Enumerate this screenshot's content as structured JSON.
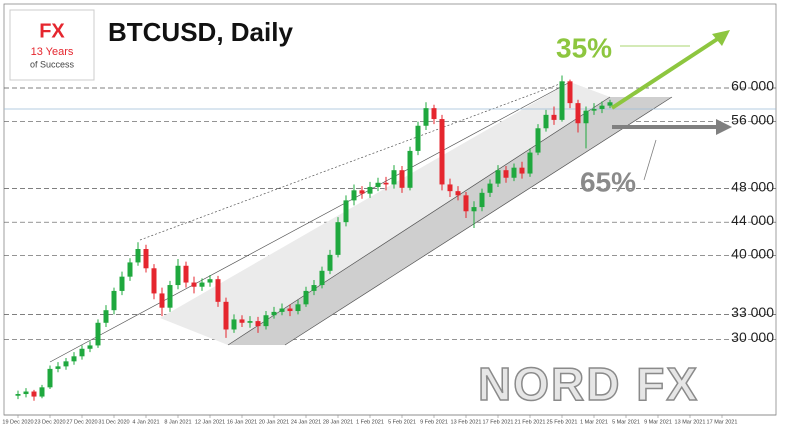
{
  "logo": {
    "brand": "FX",
    "line1": "13 Years",
    "line2": "of Success"
  },
  "watermark": "NORD FX",
  "chart_data": {
    "type": "candlestick",
    "title": "BTCUSD, Daily",
    "categories": [
      "19 Dec 2020",
      null,
      null,
      null,
      "23 Dec 2020",
      null,
      null,
      null,
      "27 Dec 2020",
      null,
      null,
      null,
      "31 Dec 2020",
      null,
      null,
      null,
      "4 Jan 2021",
      null,
      null,
      null,
      "8 Jan 2021",
      null,
      null,
      null,
      "12 Jan 2021",
      null,
      null,
      null,
      "16 Jan 2021",
      null,
      null,
      null,
      "20 Jan 2021",
      null,
      null,
      null,
      "24 Jan 2021",
      null,
      null,
      null,
      "28 Jan 2021",
      null,
      null,
      null,
      "1 Feb 2021",
      null,
      null,
      null,
      "5 Feb 2021",
      null,
      null,
      null,
      "9 Feb 2021",
      null,
      null,
      null,
      "13 Feb 2021",
      null,
      null,
      null,
      "17 Feb 2021",
      null,
      null,
      null,
      "21 Feb 2021",
      null,
      null,
      null,
      "25 Feb 2021",
      null,
      null,
      null,
      "1 Mar 2021",
      null,
      null,
      null,
      "5 Mar 2021",
      null,
      null,
      null,
      "9 Mar 2021",
      null,
      null,
      null,
      "13 Mar 2021",
      null,
      null,
      null,
      "17 Mar 2021"
    ],
    "open": [
      23300,
      23500,
      23800,
      23200,
      24300,
      26500,
      26800,
      27400,
      28000,
      28900,
      29300,
      32000,
      33500,
      35800,
      37500,
      39200,
      40800,
      38500,
      35500,
      33800,
      36500,
      38800,
      36800,
      36300,
      36800,
      37200,
      34500,
      31200,
      32400,
      32000,
      32200,
      31600,
      32900,
      33300,
      33700,
      33400,
      34200,
      35800,
      36500,
      38200,
      40100,
      44000,
      46600,
      47800,
      47400,
      48200,
      48700,
      48500,
      50200,
      48100,
      52500,
      55500,
      57600,
      56300,
      48500,
      47700,
      47200,
      45300,
      45800,
      47500,
      48600,
      50200,
      49300,
      50500,
      49800,
      52300,
      55200,
      56800,
      56200,
      60800,
      58200,
      55800,
      57300,
      57500,
      57900,
      null,
      null,
      null,
      null,
      null,
      null,
      null,
      null,
      null,
      null,
      null,
      null,
      null,
      null
    ],
    "high": [
      23900,
      24200,
      24000,
      24600,
      26900,
      27300,
      27800,
      28500,
      29300,
      29800,
      32400,
      34100,
      36200,
      38100,
      39700,
      41600,
      41300,
      39000,
      36200,
      37000,
      39600,
      39300,
      37500,
      37300,
      37700,
      37600,
      35000,
      33000,
      32900,
      32800,
      32700,
      33400,
      33900,
      34300,
      34200,
      34700,
      36300,
      37100,
      38700,
      40700,
      44600,
      47200,
      48500,
      48300,
      48800,
      49300,
      49400,
      50800,
      50700,
      53000,
      56000,
      58300,
      58000,
      56800,
      49200,
      48300,
      47600,
      46500,
      48000,
      49100,
      50800,
      50700,
      51000,
      51200,
      52800,
      55700,
      57400,
      57800,
      61500,
      61000,
      58600,
      57800,
      58200,
      58400,
      58600,
      null,
      null,
      null,
      null,
      null,
      null,
      null,
      null,
      null,
      null,
      null,
      null,
      null,
      null
    ],
    "low": [
      22900,
      23100,
      22700,
      23000,
      24100,
      26100,
      26400,
      27000,
      27600,
      28500,
      29000,
      31500,
      33000,
      35300,
      37000,
      38800,
      38000,
      34800,
      32800,
      33300,
      36000,
      36200,
      35500,
      35800,
      36300,
      33900,
      30200,
      30800,
      31500,
      31400,
      30800,
      31200,
      32500,
      32900,
      32800,
      33000,
      33900,
      35300,
      36100,
      37800,
      39800,
      43500,
      46000,
      46800,
      46900,
      47700,
      47800,
      48000,
      47500,
      47800,
      52000,
      55000,
      55700,
      47800,
      47000,
      46600,
      44500,
      43300,
      45300,
      47000,
      48200,
      48700,
      48900,
      49200,
      49400,
      52000,
      54800,
      55600,
      56000,
      57600,
      54700,
      52800,
      56800,
      57000,
      57600,
      null,
      null,
      null,
      null,
      null,
      null,
      null,
      null,
      null,
      null,
      null,
      null,
      null,
      null
    ],
    "close": [
      23500,
      23800,
      23200,
      24300,
      26500,
      26800,
      27400,
      28000,
      28900,
      29300,
      32000,
      33500,
      35800,
      37500,
      39200,
      40800,
      38500,
      35500,
      33800,
      36500,
      38800,
      36800,
      36300,
      36800,
      37200,
      34500,
      31200,
      32400,
      32000,
      32200,
      31600,
      32900,
      33300,
      33700,
      33400,
      34200,
      35800,
      36500,
      38200,
      40100,
      44000,
      46600,
      47800,
      47400,
      48200,
      48700,
      48500,
      50200,
      48100,
      52500,
      55500,
      57600,
      56300,
      48500,
      47700,
      47200,
      45300,
      45800,
      47500,
      48600,
      50200,
      49300,
      50500,
      49800,
      52300,
      55200,
      56800,
      56200,
      60800,
      58200,
      55800,
      57300,
      57500,
      57900,
      58300,
      null,
      null,
      null,
      null,
      null,
      null,
      null,
      null,
      null,
      null,
      null,
      null,
      null,
      null
    ],
    "up_color": "#1fa83e",
    "down_color": "#e5262e",
    "ylim": [
      21000,
      70500
    ],
    "yticks": [
      {
        "value": 30000,
        "label": "30 000"
      },
      {
        "value": 33000,
        "label": "33 000"
      },
      {
        "value": 40000,
        "label": "40 000"
      },
      {
        "value": 44000,
        "label": "44 000"
      },
      {
        "value": 48000,
        "label": "48 000"
      },
      {
        "value": 56000,
        "label": "56 000"
      },
      {
        "value": 60000,
        "label": "60 000"
      }
    ],
    "grid": true,
    "annotations": [
      {
        "text": "35%",
        "color": "#8dc63f"
      },
      {
        "text": "65%",
        "color": "#8a8a8a"
      }
    ]
  }
}
